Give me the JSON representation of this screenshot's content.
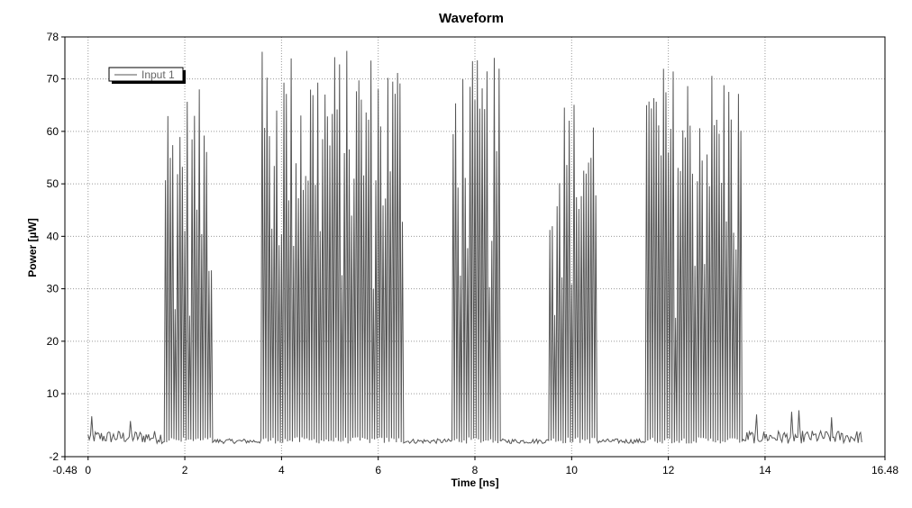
{
  "chart_data": {
    "type": "line",
    "title": "Waveform",
    "xlabel": "Time [ns]",
    "ylabel": "Power [µW]",
    "xlim": [
      -0.48,
      16.48
    ],
    "ylim": [
      -2,
      78
    ],
    "x_ticks": [
      -0.48,
      0,
      2,
      4,
      6,
      8,
      10,
      12,
      14,
      16.48
    ],
    "y_ticks": [
      -2,
      10,
      20,
      30,
      40,
      50,
      60,
      70,
      78
    ],
    "grid": true,
    "legend_position": "top-left",
    "line_color": "#555555",
    "series": [
      {
        "name": "Input 1",
        "bursts": [
          {
            "start": 1.55,
            "end": 2.55,
            "peak": 68
          },
          {
            "start": 3.55,
            "end": 6.55,
            "peak": 76
          },
          {
            "start": 7.55,
            "end": 8.55,
            "peak": 74
          },
          {
            "start": 9.55,
            "end": 10.55,
            "peak": 67
          },
          {
            "start": 11.55,
            "end": 13.55,
            "peak": 73
          }
        ],
        "noise_floor": 0.5,
        "pulse_period_ns": 0.05
      }
    ]
  }
}
